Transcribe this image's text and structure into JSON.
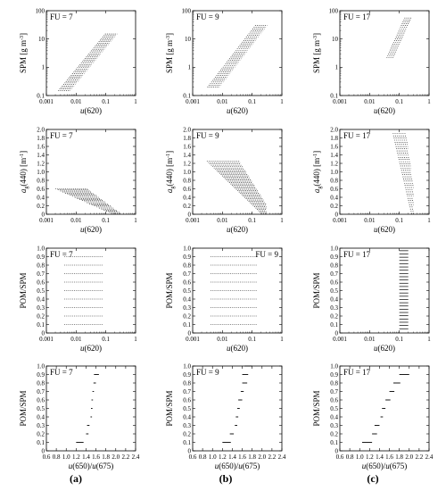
{
  "panel_labels": [
    "(a)",
    "(b)",
    "(c)"
  ],
  "chart_data": [
    {
      "id": "r1c1",
      "type": "scatter",
      "annotation": "FU = 7",
      "xlabel_main": "u",
      "xlabel_sub": "(620)",
      "ylabel_main": "SPM [g m",
      "ylabel_sup": "-3",
      "ylabel_end": "]",
      "xscale": "log",
      "yscale": "log",
      "xlim": [
        0.001,
        1
      ],
      "ylim": [
        0.1,
        100
      ],
      "xticks": [
        "0.001",
        "0.01",
        "0.1",
        "1"
      ],
      "yticks": [
        "0.1",
        "1",
        "10",
        "100"
      ],
      "pattern": "stack_log",
      "params": {
        "y0": 0.15,
        "y1": 15,
        "x0": 0.004,
        "x1": 0.15,
        "n": 38,
        "w": 1.6
      }
    },
    {
      "id": "r1c2",
      "type": "scatter",
      "annotation": "FU = 9",
      "xlabel_main": "u",
      "xlabel_sub": "(620)",
      "ylabel_main": "SPM [g m",
      "ylabel_sup": "-3",
      "ylabel_end": "]",
      "xscale": "log",
      "yscale": "log",
      "xlim": [
        0.001,
        1
      ],
      "ylim": [
        0.1,
        100
      ],
      "xticks": [
        "0.001",
        "0.01",
        "0.1",
        "1"
      ],
      "yticks": [
        "0.1",
        "1",
        "10",
        "100"
      ],
      "pattern": "stack_log",
      "params": {
        "y0": 0.2,
        "y1": 30,
        "x0": 0.005,
        "x1": 0.2,
        "n": 38,
        "w": 1.6
      }
    },
    {
      "id": "r1c3",
      "type": "scatter",
      "annotation": "FU = 17",
      "xlabel_main": "u",
      "xlabel_sub": "(620)",
      "ylabel_main": "SPM [g m",
      "ylabel_sup": "-3",
      "ylabel_end": "]",
      "xscale": "log",
      "yscale": "log",
      "xlim": [
        0.001,
        1
      ],
      "ylim": [
        0.1,
        100
      ],
      "xticks": [
        "0.001",
        "0.01",
        "0.1",
        "1"
      ],
      "yticks": [
        "0.1",
        "1",
        "10",
        "100"
      ],
      "pattern": "stack_log",
      "params": {
        "y0": 2.2,
        "y1": 55,
        "x0": 0.05,
        "x1": 0.2,
        "n": 22,
        "w": 1.35
      }
    },
    {
      "id": "r2c1",
      "type": "scatter",
      "annotation": "FU = 7",
      "xlabel_main": "u",
      "xlabel_sub": "(620)",
      "ylabel_main": "a",
      "ylabel_sub": "g",
      "ylabel_mid": "(440) [m",
      "ylabel_sup": "-1",
      "ylabel_end": "]",
      "xscale": "log",
      "yscale": "linear",
      "xlim": [
        0.001,
        1
      ],
      "ylim": [
        0,
        2
      ],
      "xticks": [
        "0.001",
        "0.01",
        "0.1",
        "1"
      ],
      "yticks": [
        "0",
        "0.2",
        "0.4",
        "0.6",
        "0.8",
        "1.0",
        "1.2",
        "1.4",
        "1.6",
        "1.8",
        "2.0"
      ],
      "pattern": "stack_lin",
      "params": {
        "y0": 0.02,
        "y1": 0.6,
        "x0": 0.002,
        "x1": 0.15,
        "n": 24,
        "w": 1.1
      }
    },
    {
      "id": "r2c2",
      "type": "scatter",
      "annotation": "FU = 9",
      "xlabel_main": "u",
      "xlabel_sub": "(620)",
      "ylabel_main": "a",
      "ylabel_sub": "g",
      "ylabel_mid": "(440) [m",
      "ylabel_sup": "-1",
      "ylabel_end": "]",
      "xscale": "log",
      "yscale": "linear",
      "xlim": [
        0.001,
        1
      ],
      "ylim": [
        0,
        2
      ],
      "xticks": [
        "0.001",
        "0.01",
        "0.1",
        "1"
      ],
      "yticks": [
        "0",
        "0.2",
        "0.4",
        "0.6",
        "0.8",
        "1.0",
        "1.2",
        "1.4",
        "1.6",
        "1.8",
        "2.0"
      ],
      "pattern": "stack_lin",
      "params": {
        "y0": 0.02,
        "y1": 1.25,
        "x0": 0.003,
        "x1": 0.2,
        "n": 40,
        "w": 1.3
      }
    },
    {
      "id": "r2c3",
      "type": "scatter",
      "annotation": "FU = 17",
      "xlabel_main": "u",
      "xlabel_sub": "(620)",
      "ylabel_main": "a",
      "ylabel_sub": "g",
      "ylabel_mid": "(440) [m",
      "ylabel_sup": "-1",
      "ylabel_end": "]",
      "xscale": "log",
      "yscale": "linear",
      "xlim": [
        0.001,
        1
      ],
      "ylim": [
        0,
        2
      ],
      "xticks": [
        "0.001",
        "0.01",
        "0.1",
        "1"
      ],
      "yticks": [
        "0",
        "0.2",
        "0.4",
        "0.6",
        "0.8",
        "1.0",
        "1.2",
        "1.4",
        "1.6",
        "1.8",
        "2.0"
      ],
      "pattern": "stack_lin",
      "params": {
        "y0": 0.02,
        "y1": 1.9,
        "x0": 0.06,
        "x1": 0.25,
        "n": 38,
        "w": 0.6
      }
    },
    {
      "id": "r3c1",
      "type": "scatter",
      "annotation": "FU = 7",
      "xlabel_main": "u",
      "xlabel_sub": "(620)",
      "ylabel_main": "POM/SPM",
      "xscale": "log",
      "yscale": "linear",
      "xlim": [
        0.001,
        1
      ],
      "ylim": [
        0,
        1
      ],
      "xticks": [
        "0.001",
        "0.01",
        "0.1",
        "1"
      ],
      "yticks": [
        "0",
        "0.1",
        "0.2",
        "0.3",
        "0.4",
        "0.5",
        "0.6",
        "0.7",
        "0.8",
        "0.9",
        "1.0"
      ],
      "pattern": "bands",
      "params": {
        "levels": [
          0.1,
          0.2,
          0.3,
          0.4,
          0.5,
          0.6,
          0.7,
          0.8,
          0.9
        ],
        "x0": 0.004,
        "x1": 0.08,
        "dash": true
      }
    },
    {
      "id": "r3c2",
      "type": "scatter",
      "annotation": "FU = 9",
      "xlabel_main": "u",
      "xlabel_sub": "(620)",
      "ylabel_main": "POM/SPM",
      "xscale": "log",
      "yscale": "linear",
      "xlim": [
        0.001,
        1
      ],
      "ylim": [
        0,
        1
      ],
      "xticks": [
        "0.001",
        "0.01",
        "0.1",
        "1"
      ],
      "yticks": [
        "0",
        "0.1",
        "0.2",
        "0.3",
        "0.4",
        "0.5",
        "0.6",
        "0.7",
        "0.8",
        "0.9",
        "1.0"
      ],
      "pattern": "bands",
      "params": {
        "levels": [
          0.1,
          0.2,
          0.3,
          0.4,
          0.5,
          0.6,
          0.7,
          0.8,
          0.9
        ],
        "x0": 0.004,
        "x1": 0.15,
        "dash": true
      }
    },
    {
      "id": "r3c3",
      "type": "scatter",
      "annotation": "FU = 17",
      "xlabel_main": "u",
      "xlabel_sub": "(620)",
      "ylabel_main": "POM/SPM",
      "xscale": "log",
      "yscale": "linear",
      "xlim": [
        0.001,
        1
      ],
      "ylim": [
        0,
        1
      ],
      "xticks": [
        "0.001",
        "0.01",
        "0.1",
        "1"
      ],
      "yticks": [
        "0",
        "0.1",
        "0.2",
        "0.3",
        "0.4",
        "0.5",
        "0.6",
        "0.7",
        "0.8",
        "0.9",
        "1.0"
      ],
      "pattern": "bands_dense",
      "params": {
        "y0": 0.05,
        "y1": 0.97,
        "n": 25,
        "x0": 0.1,
        "x1": 0.2
      }
    },
    {
      "id": "r4c1",
      "type": "scatter",
      "annotation": "FU = 7",
      "xlabel_main": "u",
      "xlabel_sub": "(650)/",
      "xlabel_main2": "u",
      "xlabel_sub2": "(675)",
      "ylabel_main": "POM/SPM",
      "xscale": "linear",
      "yscale": "linear",
      "xlim": [
        0.6,
        2.4
      ],
      "ylim": [
        0,
        1
      ],
      "xticks": [
        "0.6",
        "0.8",
        "1.0",
        "1.2",
        "1.4",
        "1.6",
        "1.8",
        "2.0",
        "2.2",
        "2.4"
      ],
      "yticks": [
        "0",
        "0.1",
        "0.2",
        "0.3",
        "0.4",
        "0.5",
        "0.6",
        "0.7",
        "0.8",
        "0.9",
        "1.0"
      ],
      "pattern": "segments",
      "segments": [
        [
          0.1,
          1.2,
          1.35
        ],
        [
          0.2,
          1.4,
          1.45
        ],
        [
          0.3,
          1.42,
          1.47
        ],
        [
          0.4,
          1.49,
          1.52
        ],
        [
          0.5,
          1.5,
          1.53
        ],
        [
          0.6,
          1.51,
          1.54
        ],
        [
          0.7,
          1.53,
          1.56
        ],
        [
          0.8,
          1.55,
          1.6
        ],
        [
          0.9,
          1.56,
          1.66
        ]
      ]
    },
    {
      "id": "r4c2",
      "type": "scatter",
      "annotation": "FU = 9",
      "xlabel_main": "u",
      "xlabel_sub": "(650)/",
      "xlabel_main2": "u",
      "xlabel_sub2": "(675)",
      "ylabel_main": "POM/SPM",
      "xscale": "linear",
      "yscale": "linear",
      "xlim": [
        0.6,
        2.4
      ],
      "ylim": [
        0,
        1
      ],
      "xticks": [
        "0.6",
        "0.8",
        "1.0",
        "1.2",
        "1.4",
        "1.6",
        "1.8",
        "2.0",
        "2.2",
        "2.4"
      ],
      "yticks": [
        "0",
        "0.1",
        "0.2",
        "0.3",
        "0.4",
        "0.5",
        "0.6",
        "0.7",
        "0.8",
        "0.9",
        "1.0"
      ],
      "pattern": "segments",
      "segments": [
        [
          0.1,
          1.2,
          1.37
        ],
        [
          0.2,
          1.35,
          1.43
        ],
        [
          0.3,
          1.45,
          1.5
        ],
        [
          0.4,
          1.47,
          1.52
        ],
        [
          0.5,
          1.5,
          1.55
        ],
        [
          0.6,
          1.52,
          1.6
        ],
        [
          0.7,
          1.57,
          1.63
        ],
        [
          0.8,
          1.6,
          1.7
        ],
        [
          0.9,
          1.6,
          1.72
        ],
        [
          1.0,
          1.65,
          1.8
        ]
      ]
    },
    {
      "id": "r4c3",
      "type": "scatter",
      "annotation": "FU = 17",
      "xlabel_main": "u",
      "xlabel_sub": "(650)/",
      "xlabel_main2": "u",
      "xlabel_sub2": "(675)",
      "ylabel_main": "POM/SPM",
      "xscale": "linear",
      "yscale": "linear",
      "xlim": [
        0.6,
        2.4
      ],
      "ylim": [
        0,
        1
      ],
      "xticks": [
        "0.6",
        "0.8",
        "1.0",
        "1.2",
        "1.4",
        "1.6",
        "1.8",
        "2.0",
        "2.2",
        "2.4"
      ],
      "yticks": [
        "0",
        "0.1",
        "0.2",
        "0.3",
        "0.4",
        "0.5",
        "0.6",
        "0.7",
        "0.8",
        "0.9",
        "1.0"
      ],
      "pattern": "segments",
      "segments": [
        [
          0.1,
          1.05,
          1.25
        ],
        [
          0.2,
          1.25,
          1.35
        ],
        [
          0.3,
          1.3,
          1.4
        ],
        [
          0.4,
          1.42,
          1.47
        ],
        [
          0.5,
          1.45,
          1.52
        ],
        [
          0.6,
          1.52,
          1.62
        ],
        [
          0.7,
          1.6,
          1.7
        ],
        [
          0.8,
          1.68,
          1.82
        ],
        [
          0.9,
          1.8,
          2.0
        ]
      ]
    }
  ]
}
